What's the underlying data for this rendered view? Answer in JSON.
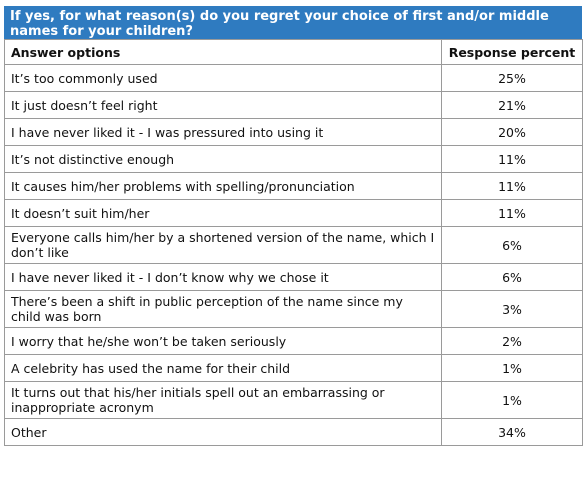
{
  "question": "If yes, for what reason(s) do you regret your choice of first and/or middle names for your children?",
  "headers": {
    "answer": "Answer options",
    "percent": "Response percent"
  },
  "rows": [
    {
      "answer": "It’s too commonly used",
      "percent": "25%"
    },
    {
      "answer": "It just doesn’t feel right",
      "percent": "21%"
    },
    {
      "answer": "I have never liked it - I was pressured into using it",
      "percent": "20%"
    },
    {
      "answer": "It’s not distinctive enough",
      "percent": "11%"
    },
    {
      "answer": "It causes him/her problems with spelling/pronunciation",
      "percent": "11%"
    },
    {
      "answer": "It doesn’t suit him/her",
      "percent": "11%"
    },
    {
      "answer": "Everyone calls him/her by a shortened version of the name, which I don’t like",
      "percent": "6%"
    },
    {
      "answer": "I have never liked it - I don’t know why we chose it",
      "percent": "6%"
    },
    {
      "answer": "There’s been a shift in public perception of the name since my child was born",
      "percent": "3%"
    },
    {
      "answer": "I worry that he/she won’t be taken seriously",
      "percent": "2%"
    },
    {
      "answer": "A celebrity has used the name for their child",
      "percent": "1%"
    },
    {
      "answer": "It turns out that his/her initials spell out an embarrassing or inappropriate acronym",
      "percent": "1%"
    },
    {
      "answer": "Other",
      "percent": "34%"
    }
  ],
  "colors": {
    "banner": "#2f7bc0",
    "banner_text": "#ffffff",
    "border": "#9a9a9a"
  }
}
